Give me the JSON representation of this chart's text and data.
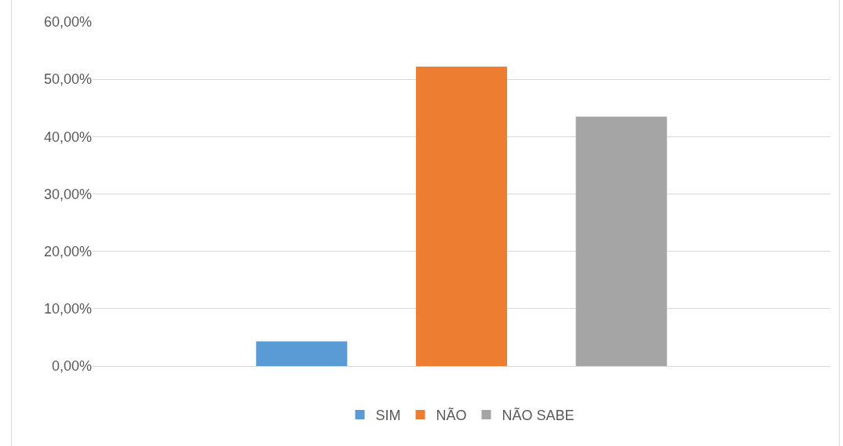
{
  "chart_data": {
    "type": "bar",
    "categories": [
      null
    ],
    "series": [
      {
        "name": "SIM",
        "color": "#5b9bd5",
        "values": [
          4.3
        ]
      },
      {
        "name": "NÃO",
        "color": "#ed7d31",
        "values": [
          52.2
        ]
      },
      {
        "name": "NÃO SABE",
        "color": "#a5a5a5",
        "values": [
          43.5
        ]
      }
    ],
    "ylim": [
      0,
      60
    ],
    "yticks": [
      {
        "value": 0,
        "label": "0,00%"
      },
      {
        "value": 10,
        "label": "10,00%"
      },
      {
        "value": 20,
        "label": "20,00%"
      },
      {
        "value": 30,
        "label": "30,00%"
      },
      {
        "value": 40,
        "label": "40,00%"
      },
      {
        "value": 50,
        "label": "50,00%"
      },
      {
        "value": 60,
        "label": "60,00%"
      }
    ],
    "grid": "y",
    "legend": "bottom"
  }
}
